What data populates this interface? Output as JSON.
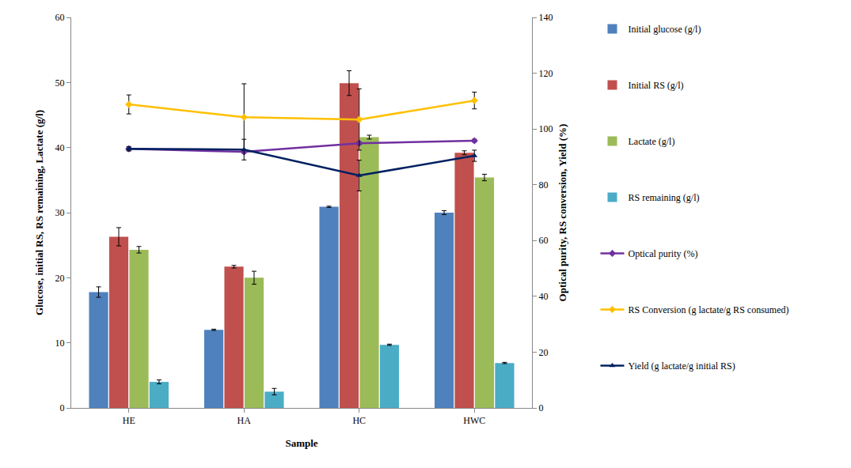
{
  "chart_data": {
    "type": "bar",
    "x_label": "Sample",
    "y_label": "Glucose, initial RS, RS remaining, Lactate (g/l)",
    "y2_label": "Optical purity, RS conversion, Yield (%)",
    "categories": [
      "HE",
      "HA",
      "HC",
      "HWC"
    ],
    "ylim": [
      0,
      60
    ],
    "yticks": [
      0,
      10,
      20,
      30,
      40,
      50,
      60
    ],
    "y2lim": [
      0,
      140
    ],
    "y2ticks": [
      0,
      20,
      40,
      60,
      80,
      100,
      120,
      140
    ],
    "grid": false,
    "legend": "right",
    "series": [
      {
        "name": "Initial glucose (g/l)",
        "type": "bar",
        "color": "#4F81BD",
        "values": [
          17.8,
          12.0,
          30.9,
          30.0
        ],
        "errors": [
          0.8,
          0.1,
          0.1,
          0.3
        ]
      },
      {
        "name": "Initial RS (g/l)",
        "type": "bar",
        "color": "#C0504D",
        "values": [
          26.3,
          21.7,
          49.9,
          39.2
        ],
        "errors": [
          1.4,
          0.2,
          1.9,
          0.3
        ]
      },
      {
        "name": "Lactate (g/l)",
        "type": "bar",
        "color": "#9BBB59",
        "values": [
          24.3,
          20.0,
          41.6,
          35.4
        ],
        "errors": [
          0.5,
          1.0,
          0.3,
          0.5
        ]
      },
      {
        "name": "RS remaining (g/l)",
        "type": "bar",
        "color": "#4BACC6",
        "values": [
          4.0,
          2.5,
          9.7,
          6.9
        ],
        "errors": [
          0.3,
          0.5,
          0.1,
          0.1
        ]
      },
      {
        "name": "Optical purity (%)",
        "type": "line",
        "axis": "y2",
        "color": "#7030A0",
        "marker": "diamond",
        "values": [
          92.9,
          91.8,
          94.9,
          95.8
        ],
        "errors": [
          0.5,
          0.5,
          0.5,
          0.5
        ]
      },
      {
        "name": "RS Conversion (g lactate/g RS consumed)",
        "type": "line",
        "axis": "y2",
        "color": "#FFC000",
        "marker": "diamond",
        "values": [
          108.8,
          104.2,
          103.4,
          110.2
        ],
        "errors": [
          3.4,
          12.0,
          11.0,
          3.0
        ]
      },
      {
        "name": "Yield (g lactate/g initial RS)",
        "type": "line",
        "axis": "y2",
        "color": "#002060",
        "marker": "triangle-up",
        "values": [
          92.9,
          92.6,
          83.3,
          90.4
        ],
        "errors": [
          0.8,
          3.7,
          5.5,
          2.0
        ]
      }
    ]
  }
}
